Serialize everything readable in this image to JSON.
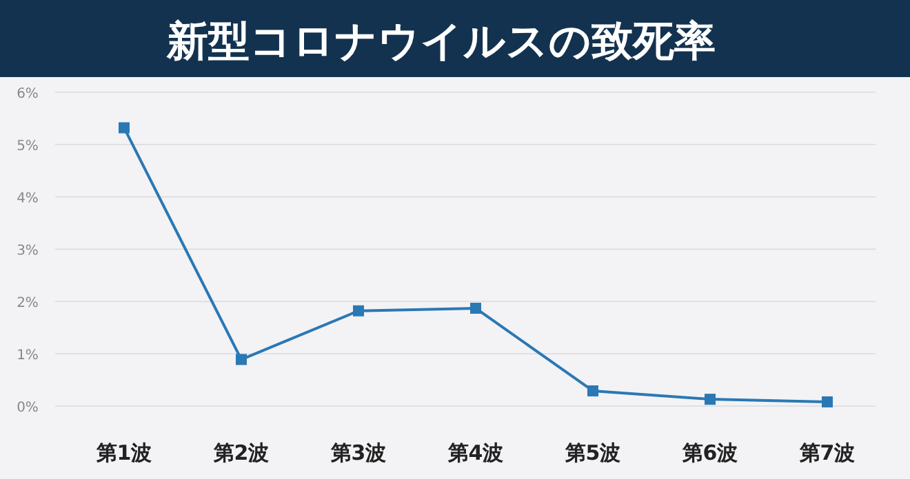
{
  "chart_data": {
    "type": "line",
    "title": "新型コロナウイルスの致死率",
    "categories": [
      "第1波",
      "第2波",
      "第3波",
      "第4波",
      "第5波",
      "第6波",
      "第7波"
    ],
    "series": [
      {
        "color": "#2a78b4",
        "values": [
          5.32,
          0.89,
          1.82,
          1.87,
          0.29,
          0.13,
          0.08
        ]
      }
    ],
    "ylim": [
      0,
      6
    ],
    "yticks": [
      {
        "value": 0,
        "label": "0%"
      },
      {
        "value": 1,
        "label": "1%"
      },
      {
        "value": 2,
        "label": "2%"
      },
      {
        "value": 3,
        "label": "3%"
      },
      {
        "value": 4,
        "label": "4%"
      },
      {
        "value": 5,
        "label": "5%"
      },
      {
        "value": 6,
        "label": "6%"
      }
    ],
    "grid": "y",
    "marker": "square",
    "line_style": "solid"
  }
}
